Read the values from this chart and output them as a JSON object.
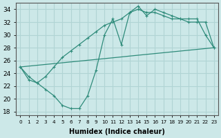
{
  "xlabel": "Humidex (Indice chaleur)",
  "background_color": "#cce8e8",
  "grid_color": "#b0d4d4",
  "line_color": "#2e8b7a",
  "xlim": [
    -0.5,
    23.5
  ],
  "ylim": [
    17.5,
    35.0
  ],
  "yticks": [
    18,
    20,
    22,
    24,
    26,
    28,
    30,
    32,
    34
  ],
  "xtick_labels": [
    "0",
    "1",
    "2",
    "3",
    "4",
    "5",
    "6",
    "7",
    "8",
    "9",
    "10",
    "11",
    "12",
    "13",
    "14",
    "15",
    "16",
    "17",
    "18",
    "19",
    "20",
    "21",
    "22",
    "23"
  ],
  "curve1_x": [
    0,
    1,
    2,
    3,
    4,
    5,
    6,
    7,
    8,
    9,
    10,
    11,
    12,
    13,
    14,
    15,
    16,
    17,
    18,
    19,
    20,
    21,
    22,
    23
  ],
  "curve1_y": [
    25.0,
    23.5,
    22.5,
    21.5,
    20.5,
    19.0,
    18.5,
    18.5,
    20.5,
    24.5,
    30.0,
    32.5,
    28.5,
    33.5,
    34.5,
    33.0,
    34.0,
    33.5,
    33.0,
    32.5,
    32.5,
    32.5,
    30.0,
    28.0
  ],
  "curve2_x": [
    0,
    1,
    2,
    3,
    4,
    5,
    6,
    7,
    8,
    9,
    10,
    11,
    12,
    13,
    14,
    15,
    16,
    17,
    18,
    19,
    20,
    21,
    22,
    23
  ],
  "curve2_y": [
    25.0,
    23.0,
    22.5,
    23.5,
    25.0,
    26.5,
    27.5,
    28.5,
    29.5,
    30.5,
    31.5,
    32.0,
    32.5,
    33.5,
    34.0,
    33.5,
    33.5,
    33.0,
    32.5,
    32.5,
    32.0,
    32.0,
    32.0,
    28.0
  ],
  "curve3_x": [
    0,
    1,
    2,
    3,
    4,
    5,
    6,
    7,
    8,
    9,
    10,
    11,
    12,
    13,
    14,
    15,
    16,
    17,
    18,
    19,
    20,
    21,
    22,
    23
  ],
  "curve3_y": [
    25.0,
    25.13,
    25.26,
    25.39,
    25.52,
    25.65,
    25.78,
    25.91,
    26.04,
    26.17,
    26.3,
    26.43,
    26.56,
    26.7,
    26.83,
    26.96,
    27.09,
    27.22,
    27.35,
    27.48,
    27.61,
    27.74,
    27.87,
    28.0
  ]
}
